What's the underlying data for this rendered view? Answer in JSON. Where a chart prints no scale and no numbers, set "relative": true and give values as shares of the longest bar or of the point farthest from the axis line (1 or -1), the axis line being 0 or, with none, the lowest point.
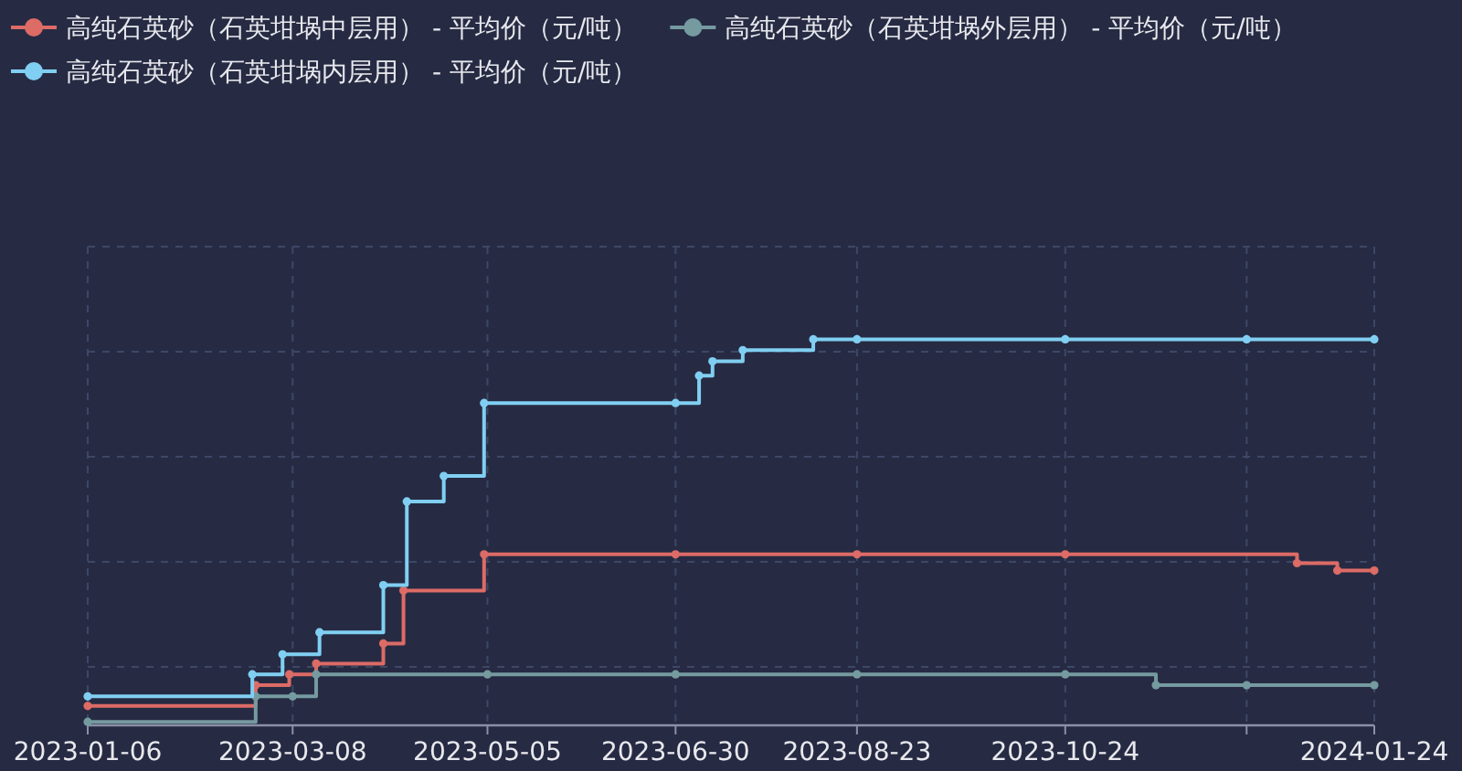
{
  "chart_data": {
    "type": "step",
    "relative": true,
    "xlim": [
      "2023-01-06",
      "2024-01-24"
    ],
    "xticks": [
      "2023-01-06",
      "2023-03-08",
      "2023-05-05",
      "2023-06-30",
      "2023-08-23",
      "2023-10-24",
      {
        "value": "2023-12-17",
        "label": null
      },
      "2024-01-24"
    ],
    "grid": true,
    "legend": "top left",
    "marker": "circle",
    "line_style": "solid",
    "series": [
      {
        "name": "高纯石英砂（石英坩埚中层用） - 平均价（元/吨）",
        "color": "#dd6b66",
        "x": [
          "2023-01-06",
          "2023-02-25",
          "2023-03-07",
          "2023-03-15",
          "2023-04-04",
          "2023-04-10",
          "2023-05-04",
          "2023-06-30",
          "2023-08-23",
          "2023-10-24",
          "2024-01-01",
          "2024-01-13",
          "2024-01-24"
        ],
        "values": [
          0.05,
          0.104,
          0.132,
          0.16,
          0.212,
          0.349,
          0.443,
          0.443,
          0.443,
          0.443,
          0.42,
          0.401,
          0.401
        ]
      },
      {
        "name": "高纯石英砂（石英坩埚外层用） - 平均价（元/吨）",
        "color": "#759aa0",
        "x": [
          "2023-01-06",
          "2023-02-25",
          "2023-03-08",
          "2023-03-15",
          "2023-05-05",
          "2023-06-30",
          "2023-08-23",
          "2023-10-24",
          "2023-11-20",
          "2023-12-17",
          "2024-01-24"
        ],
        "values": [
          0.009,
          0.075,
          0.075,
          0.132,
          0.132,
          0.132,
          0.132,
          0.132,
          0.104,
          0.104,
          0.104
        ]
      },
      {
        "name": "高纯石英砂（石英坩埚内层用） - 平均价（元/吨）",
        "color": "#80cff2",
        "x": [
          "2023-01-06",
          "2023-02-24",
          "2023-03-05",
          "2023-03-16",
          "2023-04-04",
          "2023-04-11",
          "2023-04-22",
          "2023-05-04",
          "2023-06-30",
          "2023-07-07",
          "2023-07-11",
          "2023-07-20",
          "2023-08-10",
          "2023-08-23",
          "2023-10-24",
          "2023-12-17",
          "2024-01-24"
        ],
        "values": [
          0.075,
          0.132,
          0.184,
          0.241,
          0.363,
          0.58,
          0.646,
          0.835,
          0.835,
          0.906,
          0.943,
          0.972,
          1,
          1,
          1,
          1,
          1
        ]
      }
    ]
  }
}
